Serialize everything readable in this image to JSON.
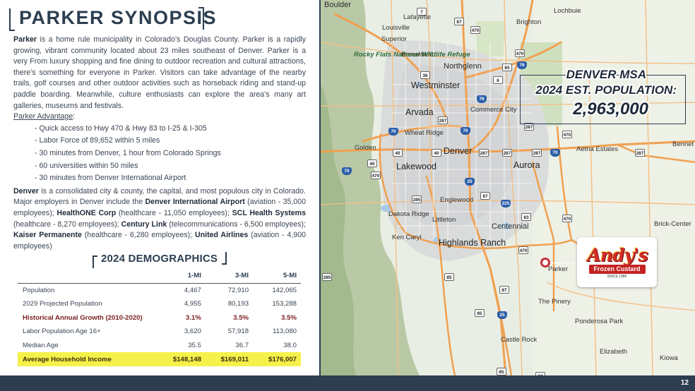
{
  "title": "PARKER SYNOPSIS",
  "intro": {
    "name": "Parker",
    "text": " is a home rule municipality in Colorado’s Douglas County. Parker is a rapidly growing, vibrant community located about 23 miles southeast of Denver. Parker is a very From luxury shopping and fine dining to outdoor recreation and cultural attractions, there’s something for everyone in Parker. Visitors can take advantage of the nearby trails, golf courses and other outdoor activities such as horseback riding and stand-up paddle boarding. Meanwhile, culture enthusiasts can explore the area’s many art galleries, museums and festivals."
  },
  "advantage": {
    "title": "Parker Advantage",
    "colon": ":",
    "items": [
      "- Quick access to Hwy 470 & Hwy 83 to I-25 & I-305",
      "- Labor Force of 89,652 within 5 miles",
      "- 30 minutes from Denver, 1 hour from Colorado Springs",
      "- 60 universities within 50 miles",
      "- 30 minutes from Denver International Airport"
    ]
  },
  "denver": {
    "name": "Denver",
    "t1": " is a consolidated city & county, the capital, and most populous city in Colorado. Major employers in Denver include the ",
    "e1": "Denver International Airport",
    "t2": " (aviation - 35,000 employees); ",
    "e2": "HealthONE Corp",
    "t3": " (healthcare - 11,050 employees); ",
    "e3": "SCL Health Systems",
    "t4": " (healthcare - 8,270 employees); ",
    "e4": "Century Link",
    "t5": " (telecommunications - 6,500 employees); ",
    "e5": "Kaiser Permanente",
    "t6": " (healthcare - 6,280 employees); ",
    "e6": "United Airlines",
    "t7": " (aviation - 4,900 employees)"
  },
  "demographics": {
    "title": "2024 DEMOGRAPHICS",
    "columns": [
      "",
      "1-MI",
      "3-MI",
      "5-MI"
    ],
    "rows": [
      [
        "Population",
        "4,467",
        "72,910",
        "142,065"
      ],
      [
        "2029 Projected Population",
        "4,955",
        "80,193",
        "153,288"
      ],
      [
        "Historical Annual Growth (2010-2020)",
        "3.1%",
        "3.5%",
        "3.5%"
      ],
      [
        "Labor Population Age 16+",
        "3,620",
        "57,918",
        "113,080"
      ],
      [
        "Median Age",
        "35.5",
        "36.7",
        "38.0"
      ],
      [
        "Average Household Income",
        "$148,148",
        "$169,011",
        "$176,007"
      ]
    ]
  },
  "msa": {
    "line1": "DENVER MSA",
    "line2": "2024 EST. POPULATION:",
    "value": "2,963,000"
  },
  "logo": {
    "top": "Andy's",
    "band": "Frozen Custard",
    "since": "SINCE 1986"
  },
  "map": {
    "places": [
      "Boulder",
      "Lafayette",
      "Louisville",
      "Lochbuie",
      "Brighton",
      "Superior",
      "Broomfield",
      "Rocky Flats National Wildlife Refuge",
      "Northglenn",
      "Westminster",
      "Commerce City",
      "Arvada",
      "Wheat Ridge",
      "Golden",
      "Denver",
      "Aurora",
      "Aetna Estates",
      "Bennet",
      "Lakewood",
      "Englewood",
      "Dakota Ridge",
      "Littleton",
      "Centennial",
      "Ken Caryl",
      "Highlands Ranch",
      "Brick-Center",
      "Parker",
      "The Pinery",
      "Ponderosa Park",
      "Castle Rock",
      "Elizabeth",
      "Kiowa"
    ],
    "shields": [
      "7",
      "87",
      "470",
      "36",
      "470",
      "76",
      "85",
      "6",
      "76",
      "287",
      "70",
      "70",
      "287",
      "470",
      "40",
      "40",
      "287",
      "287",
      "287",
      "70",
      "287",
      "70",
      "40",
      "470",
      "25",
      "87",
      "225",
      "285",
      "83",
      "470",
      "470",
      "285",
      "85",
      "87",
      "85",
      "25",
      "85",
      "83"
    ]
  },
  "page_number": "12",
  "colors": {
    "navy": "#2c3e50",
    "highlight": "#f5f14a",
    "growth": "#7a1f1f",
    "road": "#f0a050"
  }
}
